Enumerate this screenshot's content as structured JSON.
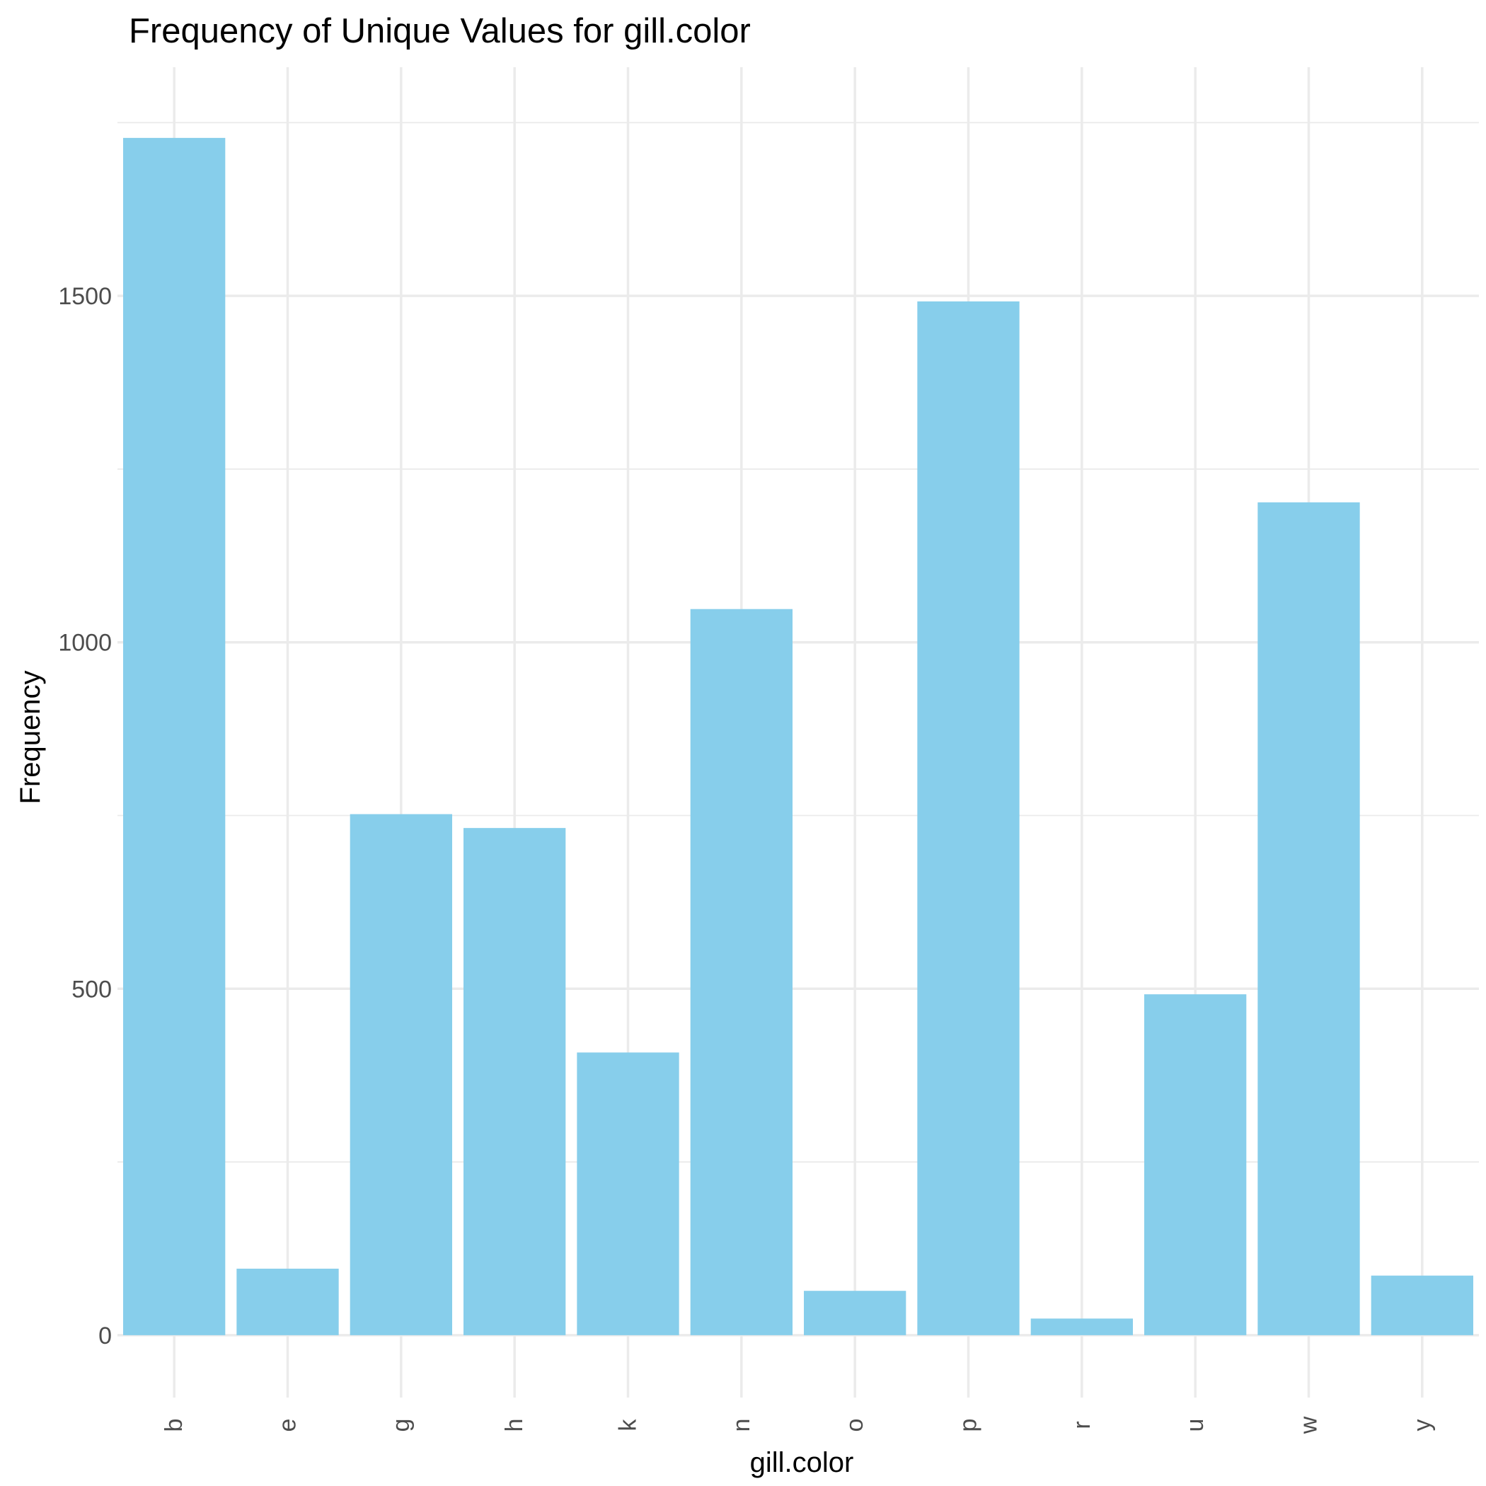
{
  "chart_data": {
    "type": "bar",
    "title": "Frequency of Unique Values for gill.color",
    "xlabel": "gill.color",
    "ylabel": "Frequency",
    "categories": [
      "b",
      "e",
      "g",
      "h",
      "k",
      "n",
      "o",
      "p",
      "r",
      "u",
      "w",
      "y"
    ],
    "values": [
      1728,
      96,
      752,
      732,
      408,
      1048,
      64,
      1492,
      24,
      492,
      1202,
      86
    ],
    "ylim": [
      -90,
      1830
    ],
    "yticks": [
      0,
      500,
      1000,
      1500
    ],
    "yticks_minor": [
      250,
      750,
      1250,
      1750
    ],
    "grid": true,
    "bar_color": "#87ceeb",
    "legend": "none"
  }
}
